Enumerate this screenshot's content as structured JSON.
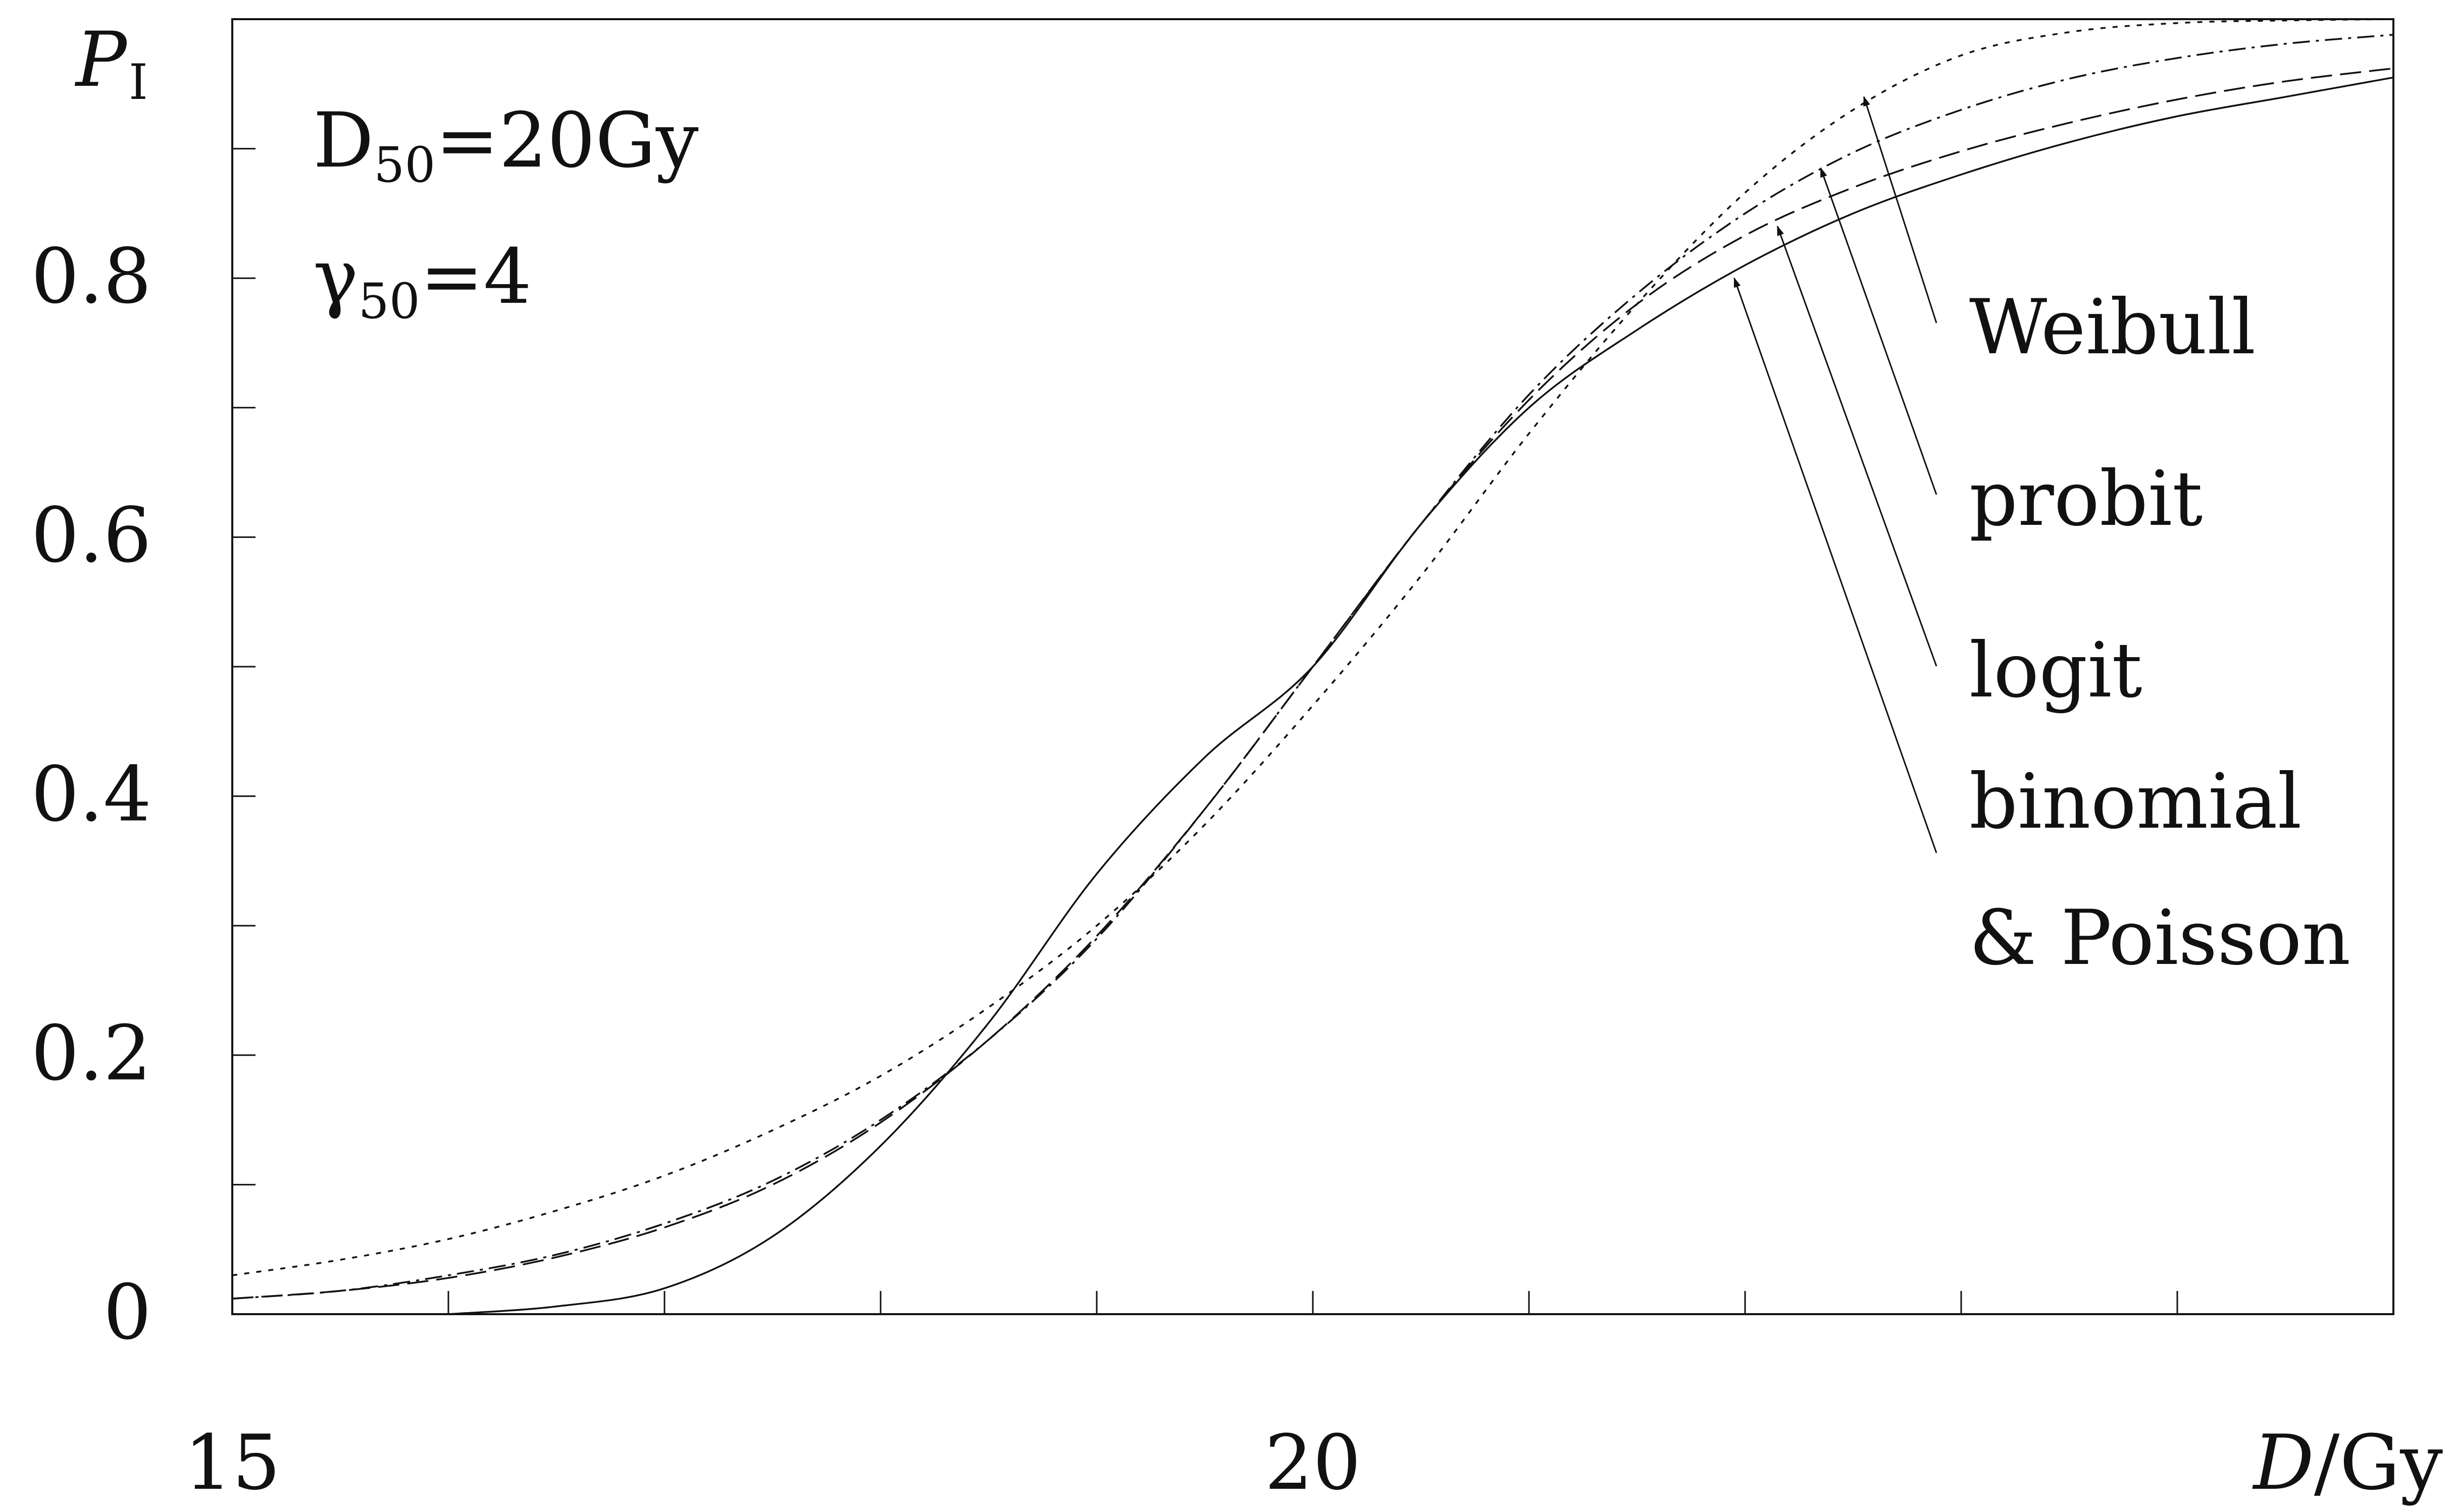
{
  "chart_data": {
    "type": "line",
    "title": "",
    "xlabel": {
      "italic": "D",
      "unit": "/Gy"
    },
    "ylabel": {
      "main": "P",
      "sub": "I"
    },
    "xlim": [
      15,
      25
    ],
    "ylim": [
      0,
      1
    ],
    "x_tick_labels": [
      {
        "value": 15,
        "label": "15"
      },
      {
        "value": 20,
        "label": "20"
      }
    ],
    "y_tick_labels": [
      {
        "value": 0,
        "label": "0"
      },
      {
        "value": 0.2,
        "label": "0.2"
      },
      {
        "value": 0.4,
        "label": "0.4"
      },
      {
        "value": 0.6,
        "label": "0.6"
      },
      {
        "value": 0.8,
        "label": "0.8"
      }
    ],
    "x_minor_ticks": [
      16,
      17,
      18,
      19,
      21,
      22,
      23,
      24
    ],
    "y_minor_ticks": [
      0.1,
      0.3,
      0.5,
      0.7,
      0.9
    ],
    "grid": false,
    "annotations": {
      "d50": {
        "base": "D",
        "sub": "50",
        "rest": "=20Gy"
      },
      "gamma50": {
        "base": "γ",
        "sub": "50",
        "rest": "=4"
      }
    },
    "series": [
      {
        "name": "Weibull",
        "dash": "10,14",
        "x": [
          15,
          15.5,
          16,
          16.5,
          17,
          17.5,
          18,
          18.5,
          19,
          19.5,
          20,
          20.5,
          21,
          21.5,
          22,
          22.5,
          23,
          23.5,
          24,
          24.5,
          25
        ],
        "y": [
          0.03,
          0.042,
          0.058,
          0.08,
          0.107,
          0.142,
          0.184,
          0.237,
          0.3,
          0.378,
          0.47,
          0.57,
          0.68,
          0.78,
          0.866,
          0.93,
          0.972,
          0.99,
          0.997,
          0.999,
          1.0
        ],
        "arrow_at": [
          22.55,
          0.94
        ],
        "label_lines": [
          "Weibull"
        ]
      },
      {
        "name": "probit",
        "dash": "34,12,6,12",
        "x": [
          15,
          15.5,
          16,
          16.5,
          17,
          17.5,
          18,
          18.5,
          19,
          19.5,
          20,
          20.5,
          21,
          21.5,
          22,
          22.5,
          23,
          23.5,
          24,
          24.5,
          25
        ],
        "y": [
          0.012,
          0.018,
          0.03,
          0.046,
          0.07,
          0.103,
          0.15,
          0.212,
          0.29,
          0.39,
          0.5,
          0.61,
          0.71,
          0.788,
          0.85,
          0.897,
          0.93,
          0.954,
          0.97,
          0.981,
          0.988
        ],
        "arrow_at": [
          22.35,
          0.885
        ],
        "label_lines": [
          "probit"
        ]
      },
      {
        "name": "logit",
        "dash": "42,16",
        "x": [
          15,
          15.5,
          16,
          16.5,
          17,
          17.5,
          18,
          18.5,
          19,
          19.5,
          20,
          20.5,
          21,
          21.5,
          22,
          22.5,
          23,
          23.5,
          24,
          24.5,
          25
        ],
        "y": [
          0.012,
          0.018,
          0.028,
          0.044,
          0.067,
          0.1,
          0.148,
          0.212,
          0.292,
          0.39,
          0.5,
          0.61,
          0.706,
          0.78,
          0.833,
          0.87,
          0.898,
          0.92,
          0.938,
          0.952,
          0.962
        ],
        "arrow_at": [
          22.15,
          0.84
        ],
        "label_lines": [
          "logit"
        ]
      },
      {
        "name": "binomial & Poisson",
        "dash": "",
        "x": [
          16,
          16.5,
          17,
          17.5,
          18,
          18.5,
          19,
          19.5,
          20,
          20.5,
          21,
          21.5,
          22,
          22.5,
          23,
          23.5,
          24,
          24.5,
          25
        ],
        "y": [
          0.0,
          0.006,
          0.02,
          0.06,
          0.13,
          0.225,
          0.34,
          0.43,
          0.5,
          0.61,
          0.7,
          0.76,
          0.81,
          0.85,
          0.88,
          0.905,
          0.925,
          0.94,
          0.955
        ],
        "arrow_at": [
          21.95,
          0.8
        ],
        "label_lines": [
          "binomial",
          "& Poisson"
        ]
      }
    ]
  }
}
